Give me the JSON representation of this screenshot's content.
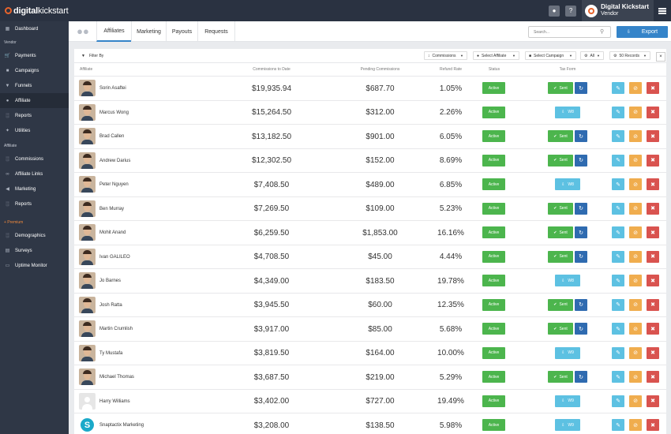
{
  "app": {
    "logo_bold": "digital",
    "logo_rest": "kickstart"
  },
  "topbar": {
    "user_icon": "user-icon",
    "help_label": "?",
    "vendor_name": "Digital Kickstart",
    "vendor_role": "Vendor"
  },
  "sidebar": {
    "dashboard": "Dashboard",
    "vendor_heading": "Vendor",
    "vendor_items": [
      "Payments",
      "Campaigns",
      "Funnels",
      "Affiliate",
      "Reports",
      "Utilities"
    ],
    "affiliate_heading": "Affiliate",
    "affiliate_items": [
      "Commissions",
      "Affiliate Links",
      "Marketing",
      "Reports"
    ],
    "premium_heading": "+ Premium",
    "premium_items": [
      "Demographics",
      "Surveys",
      "Uptime Monitor"
    ],
    "active_item": "Affiliate"
  },
  "tabs": [
    "Affiliates",
    "Marketing",
    "Payouts",
    "Requests"
  ],
  "search": {
    "placeholder": "Search..."
  },
  "export_label": "Export",
  "filter": {
    "label": "Filter By",
    "commissions": "Commissions",
    "affiliate": "Select Affiliate",
    "campaign": "Select Campaign",
    "all": "All",
    "records": "50 Records",
    "close": "×"
  },
  "table": {
    "headers": [
      "Affiliate",
      "Commissions to Date",
      "Pending Commissions",
      "Refund Rate",
      "Status",
      "Tax Form"
    ],
    "rows": [
      {
        "name": "Sorin Asaftei",
        "commissions": "$19,935.94",
        "pending": "$687.70",
        "refund": "1.05%",
        "status": "Active",
        "tax": "Sent",
        "avatar": "photo"
      },
      {
        "name": "Marcus Wong",
        "commissions": "$15,264.50",
        "pending": "$312.00",
        "refund": "2.26%",
        "status": "Active",
        "tax": "W8",
        "avatar": "photo"
      },
      {
        "name": "Brad Callen",
        "commissions": "$13,182.50",
        "pending": "$901.00",
        "refund": "6.05%",
        "status": "Active",
        "tax": "Sent",
        "avatar": "photo"
      },
      {
        "name": "Andrew Darius",
        "commissions": "$12,302.50",
        "pending": "$152.00",
        "refund": "8.69%",
        "status": "Active",
        "tax": "Sent",
        "avatar": "photo"
      },
      {
        "name": "Peter Nguyen",
        "commissions": "$7,408.50",
        "pending": "$489.00",
        "refund": "6.85%",
        "status": "Active",
        "tax": "W8",
        "avatar": "photo"
      },
      {
        "name": "Ben Murray",
        "commissions": "$7,269.50",
        "pending": "$109.00",
        "refund": "5.23%",
        "status": "Active",
        "tax": "Sent",
        "avatar": "photo"
      },
      {
        "name": "Mohit Anand",
        "commissions": "$6,259.50",
        "pending": "$1,853.00",
        "refund": "16.16%",
        "status": "Active",
        "tax": "Sent",
        "avatar": "photo"
      },
      {
        "name": "Ivan GALILEO",
        "commissions": "$4,708.50",
        "pending": "$45.00",
        "refund": "4.44%",
        "status": "Active",
        "tax": "Sent",
        "avatar": "photo"
      },
      {
        "name": "Jo Barnes",
        "commissions": "$4,349.00",
        "pending": "$183.50",
        "refund": "19.78%",
        "status": "Active",
        "tax": "W8",
        "avatar": "photo"
      },
      {
        "name": "Josh Ratta",
        "commissions": "$3,945.50",
        "pending": "$60.00",
        "refund": "12.35%",
        "status": "Active",
        "tax": "Sent",
        "avatar": "photo"
      },
      {
        "name": "Martin Crumlish",
        "commissions": "$3,917.00",
        "pending": "$85.00",
        "refund": "5.68%",
        "status": "Active",
        "tax": "Sent",
        "avatar": "photo"
      },
      {
        "name": "Ty Mustafa",
        "commissions": "$3,819.50",
        "pending": "$164.00",
        "refund": "10.00%",
        "status": "Active",
        "tax": "W9",
        "avatar": "photo"
      },
      {
        "name": "Michael Thomas",
        "commissions": "$3,687.50",
        "pending": "$219.00",
        "refund": "5.29%",
        "status": "Active",
        "tax": "Sent",
        "avatar": "photo"
      },
      {
        "name": "Harry Williams",
        "commissions": "$3,402.00",
        "pending": "$727.00",
        "refund": "19.49%",
        "status": "Active",
        "tax": "W9",
        "avatar": "blank"
      },
      {
        "name": "Snaptactix Marketing",
        "commissions": "$3,208.00",
        "pending": "$138.50",
        "refund": "5.98%",
        "status": "Active",
        "tax": "W9",
        "avatar": "snap"
      }
    ]
  },
  "colors": {
    "sidebar": "#2f3746",
    "topbar": "#2a3241",
    "accent": "#3584c9",
    "active_green": "#4cb54d",
    "refresh_blue": "#2f6bb0",
    "w_button": "#5dc1e2",
    "edit": "#5dc1e2",
    "ban": "#f0ad4e",
    "delete": "#d9534f"
  }
}
